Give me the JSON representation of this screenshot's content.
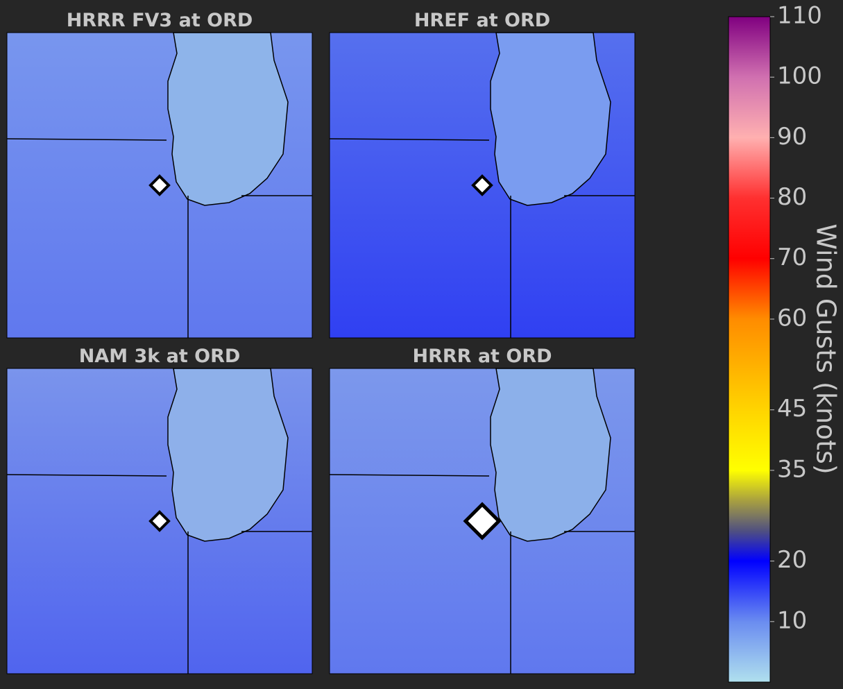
{
  "panels": [
    {
      "title": "HRRR FV3 at ORD"
    },
    {
      "title": "HREF at ORD"
    },
    {
      "title": "NAM 3k at ORD"
    },
    {
      "title": "HRRR at ORD"
    }
  ],
  "colorbar": {
    "label": "Wind Gusts (knots)",
    "lim": [
      0,
      110
    ],
    "ticks": [
      10,
      20,
      35,
      45,
      60,
      70,
      80,
      90,
      100,
      110
    ],
    "colors": [
      {
        "value": 0,
        "color": "#b0e0ee"
      },
      {
        "value": 10,
        "color": "#6a8cf0"
      },
      {
        "value": 20,
        "color": "#0000ff"
      },
      {
        "value": 25,
        "color": "#505080"
      },
      {
        "value": 30,
        "color": "#a8a040"
      },
      {
        "value": 35,
        "color": "#ffff00"
      },
      {
        "value": 45,
        "color": "#ffd400"
      },
      {
        "value": 60,
        "color": "#ff8c00"
      },
      {
        "value": 70,
        "color": "#ff0000"
      },
      {
        "value": 80,
        "color": "#ff3030"
      },
      {
        "value": 90,
        "color": "#ffb0b0"
      },
      {
        "value": 100,
        "color": "#d070b0"
      },
      {
        "value": 110,
        "color": "#800080"
      }
    ]
  }
}
